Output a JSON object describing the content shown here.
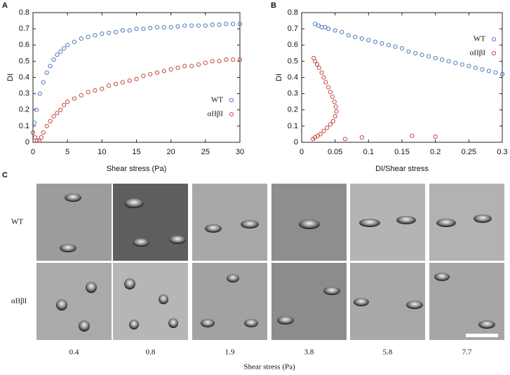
{
  "chart_data": [
    {
      "type": "scatter",
      "panel": "A",
      "x_label": "Shear stress (Pa)",
      "y_label": "DI",
      "xlim": [
        0,
        30
      ],
      "xticks": [
        0,
        5,
        10,
        15,
        20,
        25,
        30
      ],
      "ylim": [
        0,
        0.8
      ],
      "yticks": [
        0,
        0.1,
        0.2,
        0.3,
        0.4,
        0.5,
        0.6,
        0.7,
        0.8
      ],
      "legend": "lower right",
      "series": [
        {
          "name": "WT",
          "color": "#3a67b8",
          "x": [
            0.2,
            0.5,
            1,
            1.5,
            2,
            2.5,
            3,
            3.5,
            4,
            4.5,
            5,
            6,
            7,
            8,
            9,
            10,
            11,
            12,
            13,
            14,
            15,
            16,
            17,
            18,
            19,
            20,
            21,
            22,
            23,
            24,
            25,
            26,
            27,
            28,
            29,
            30
          ],
          "values": [
            0.12,
            0.2,
            0.3,
            0.37,
            0.43,
            0.47,
            0.51,
            0.54,
            0.56,
            0.58,
            0.6,
            0.62,
            0.64,
            0.65,
            0.66,
            0.67,
            0.675,
            0.68,
            0.69,
            0.69,
            0.7,
            0.7,
            0.705,
            0.71,
            0.71,
            0.71,
            0.715,
            0.72,
            0.72,
            0.72,
            0.72,
            0.725,
            0.725,
            0.73,
            0.73,
            0.73
          ]
        },
        {
          "name": "αIIβI",
          "color": "#c0302a",
          "x": [
            0,
            0.3,
            0.6,
            0.9,
            1.2,
            1.5,
            2,
            2.5,
            3,
            3.5,
            4,
            4.5,
            5,
            6,
            7,
            8,
            9,
            10,
            11,
            12,
            13,
            14,
            15,
            16,
            17,
            18,
            19,
            20,
            21,
            22,
            23,
            24,
            25,
            26,
            27,
            28,
            29,
            30
          ],
          "values": [
            0.06,
            0.03,
            0.01,
            0.01,
            0.03,
            0.06,
            0.1,
            0.13,
            0.16,
            0.18,
            0.2,
            0.23,
            0.25,
            0.27,
            0.29,
            0.31,
            0.32,
            0.33,
            0.35,
            0.36,
            0.37,
            0.38,
            0.39,
            0.41,
            0.42,
            0.43,
            0.44,
            0.45,
            0.46,
            0.47,
            0.47,
            0.48,
            0.49,
            0.5,
            0.5,
            0.51,
            0.51,
            0.51
          ]
        }
      ]
    },
    {
      "type": "scatter",
      "panel": "B",
      "x_label": "DI/Shear stress",
      "y_label": "DI",
      "xlim": [
        0,
        0.3
      ],
      "xticks": [
        0,
        0.05,
        0.1,
        0.15,
        0.2,
        0.25,
        0.3
      ],
      "ylim": [
        0,
        0.8
      ],
      "yticks": [
        0,
        0.1,
        0.2,
        0.3,
        0.4,
        0.5,
        0.6,
        0.7,
        0.8
      ],
      "legend": "upper right",
      "series": [
        {
          "name": "WT",
          "color": "#3a67b8",
          "x": [
            0.02,
            0.025,
            0.03,
            0.035,
            0.04,
            0.05,
            0.06,
            0.07,
            0.08,
            0.09,
            0.1,
            0.11,
            0.12,
            0.13,
            0.14,
            0.15,
            0.16,
            0.17,
            0.18,
            0.19,
            0.2,
            0.21,
            0.22,
            0.23,
            0.24,
            0.25,
            0.26,
            0.27,
            0.28,
            0.29,
            0.3
          ],
          "values": [
            0.73,
            0.72,
            0.71,
            0.71,
            0.7,
            0.69,
            0.68,
            0.66,
            0.65,
            0.64,
            0.63,
            0.62,
            0.61,
            0.6,
            0.59,
            0.58,
            0.56,
            0.55,
            0.54,
            0.53,
            0.52,
            0.51,
            0.5,
            0.49,
            0.48,
            0.47,
            0.46,
            0.45,
            0.44,
            0.43,
            0.42
          ]
        },
        {
          "name": "αIIβI",
          "color": "#c0302a",
          "x": [
            0.018,
            0.02,
            0.023,
            0.026,
            0.03,
            0.033,
            0.036,
            0.04,
            0.043,
            0.046,
            0.049,
            0.051,
            0.052,
            0.05,
            0.047,
            0.043,
            0.038,
            0.033,
            0.028,
            0.024,
            0.02,
            0.017,
            0.065,
            0.09,
            0.165,
            0.2
          ],
          "values": [
            0.52,
            0.5,
            0.48,
            0.46,
            0.43,
            0.4,
            0.37,
            0.34,
            0.31,
            0.28,
            0.25,
            0.22,
            0.19,
            0.16,
            0.13,
            0.11,
            0.09,
            0.07,
            0.05,
            0.04,
            0.03,
            0.02,
            0.02,
            0.03,
            0.04,
            0.035
          ]
        }
      ]
    }
  ],
  "panel_c": {
    "label": "C",
    "rows": [
      "WT",
      "αIIβI"
    ],
    "columns": [
      "0.4",
      "0.8",
      "1.9",
      "3.8",
      "5.8",
      "7.7"
    ],
    "x_label": "Shear stress (Pa)"
  }
}
